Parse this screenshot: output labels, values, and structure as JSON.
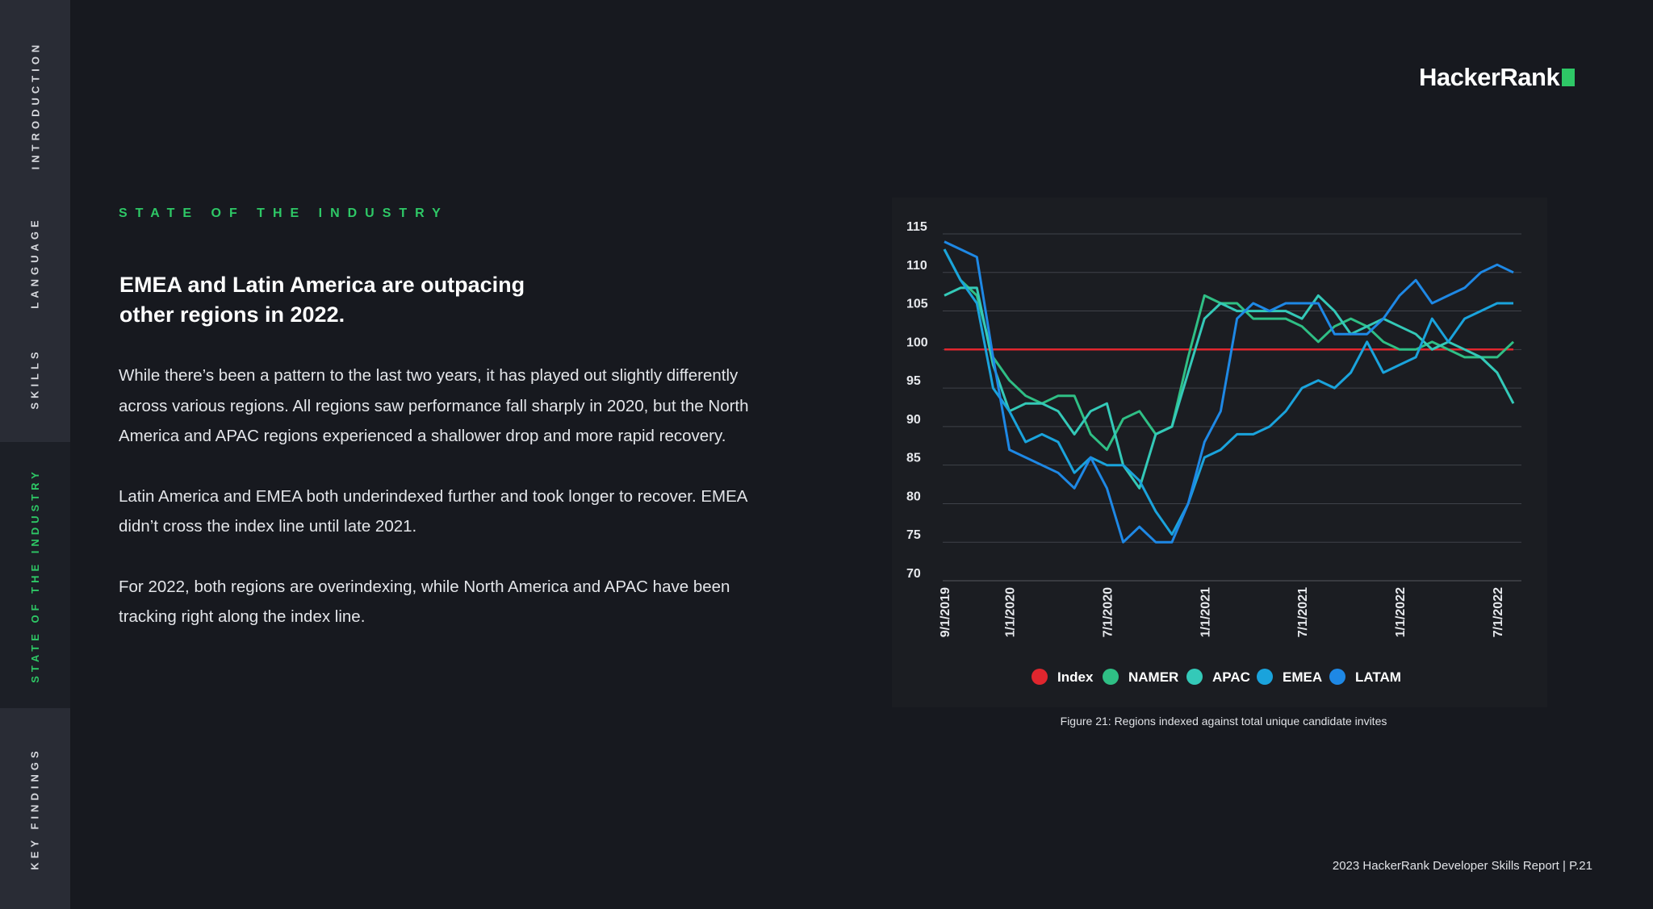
{
  "nav": {
    "items": [
      {
        "label": "INTRODUCTION"
      },
      {
        "label": "LANGUAGE"
      },
      {
        "label": "SKILLS"
      },
      {
        "label": "STATE OF THE INDUSTRY"
      },
      {
        "label": "KEY FINDINGS"
      }
    ]
  },
  "brand": {
    "logo_text": "HackerRank",
    "accent": "#2ec866"
  },
  "section": {
    "eyebrow": "STATE OF THE INDUSTRY",
    "headline": "EMEA and Latin America are outpacing other regions in 2022.",
    "paragraphs": [
      "While there’s been a pattern to the last two years, it has played out slightly differently across various regions. All regions saw performance fall sharply in 2020, but the North America and APAC regions experienced a shallower drop and more rapid recovery.",
      "Latin America and EMEA both underindexed further and took longer to recover. EMEA didn’t cross the index line until late 2021.",
      "For 2022, both regions are overindexing, while North America and APAC have been tracking right along the index line."
    ]
  },
  "chart_data": {
    "type": "line",
    "title": "",
    "xlabel": "",
    "ylabel": "",
    "x": [
      "9/1/2019",
      "10/1/2019",
      "11/1/2019",
      "12/1/2019",
      "1/1/2020",
      "2/1/2020",
      "3/1/2020",
      "4/1/2020",
      "5/1/2020",
      "6/1/2020",
      "7/1/2020",
      "8/1/2020",
      "9/1/2020",
      "10/1/2020",
      "11/1/2020",
      "12/1/2020",
      "1/1/2021",
      "2/1/2021",
      "3/1/2021",
      "4/1/2021",
      "5/1/2021",
      "6/1/2021",
      "7/1/2021",
      "8/1/2021",
      "9/1/2021",
      "10/1/2021",
      "11/1/2021",
      "12/1/2021",
      "1/1/2022",
      "2/1/2022",
      "3/1/2022",
      "4/1/2022",
      "5/1/2022",
      "6/1/2022",
      "7/1/2022",
      "8/1/2022"
    ],
    "x_tick_labels": [
      "9/1/2019",
      "1/1/2020",
      "7/1/2020",
      "1/1/2021",
      "7/1/2021",
      "1/1/2022",
      "7/1/2022"
    ],
    "y_ticks": [
      70,
      75,
      80,
      85,
      90,
      95,
      100,
      105,
      110,
      115
    ],
    "ylim": [
      70,
      115
    ],
    "grid": true,
    "legend_position": "bottom",
    "series": [
      {
        "name": "Index",
        "color": "#e0262e",
        "values": [
          100,
          100,
          100,
          100,
          100,
          100,
          100,
          100,
          100,
          100,
          100,
          100,
          100,
          100,
          100,
          100,
          100,
          100,
          100,
          100,
          100,
          100,
          100,
          100,
          100,
          100,
          100,
          100,
          100,
          100,
          100,
          100,
          100,
          100,
          100,
          100
        ]
      },
      {
        "name": "NAMER",
        "color": "#2fbf85",
        "values": [
          113,
          109,
          107,
          99,
          96,
          94,
          93,
          94,
          94,
          89,
          87,
          91,
          92,
          89,
          90,
          99,
          107,
          106,
          106,
          104,
          104,
          104,
          103,
          101,
          103,
          104,
          103,
          101,
          100,
          100,
          101,
          100,
          99,
          99,
          99,
          101
        ]
      },
      {
        "name": "APAC",
        "color": "#34c9b8",
        "values": [
          107,
          108,
          108,
          98,
          92,
          93,
          93,
          92,
          89,
          92,
          93,
          85,
          82,
          89,
          90,
          97,
          104,
          106,
          105,
          105,
          105,
          105,
          104,
          107,
          105,
          102,
          103,
          104,
          103,
          102,
          100,
          101,
          100,
          99,
          97,
          93
        ]
      },
      {
        "name": "EMEA",
        "color": "#1aa3dc",
        "values": [
          113,
          109,
          106,
          95,
          92,
          88,
          89,
          88,
          84,
          86,
          85,
          85,
          83,
          79,
          76,
          80,
          86,
          87,
          89,
          89,
          90,
          92,
          95,
          96,
          95,
          97,
          101,
          97,
          98,
          99,
          104,
          101,
          104,
          105,
          106,
          106
        ]
      },
      {
        "name": "LATAM",
        "color": "#1e88e5",
        "values": [
          114,
          113,
          112,
          99,
          87,
          86,
          85,
          84,
          82,
          86,
          82,
          75,
          77,
          75,
          75,
          80,
          88,
          92,
          104,
          106,
          105,
          106,
          106,
          106,
          102,
          102,
          102,
          104,
          107,
          109,
          106,
          107,
          108,
          110,
          111,
          110
        ]
      }
    ]
  },
  "caption": "Figure 21: Regions indexed against total unique candidate invites",
  "footer": "2023 HackerRank Developer Skills Report | P.21"
}
